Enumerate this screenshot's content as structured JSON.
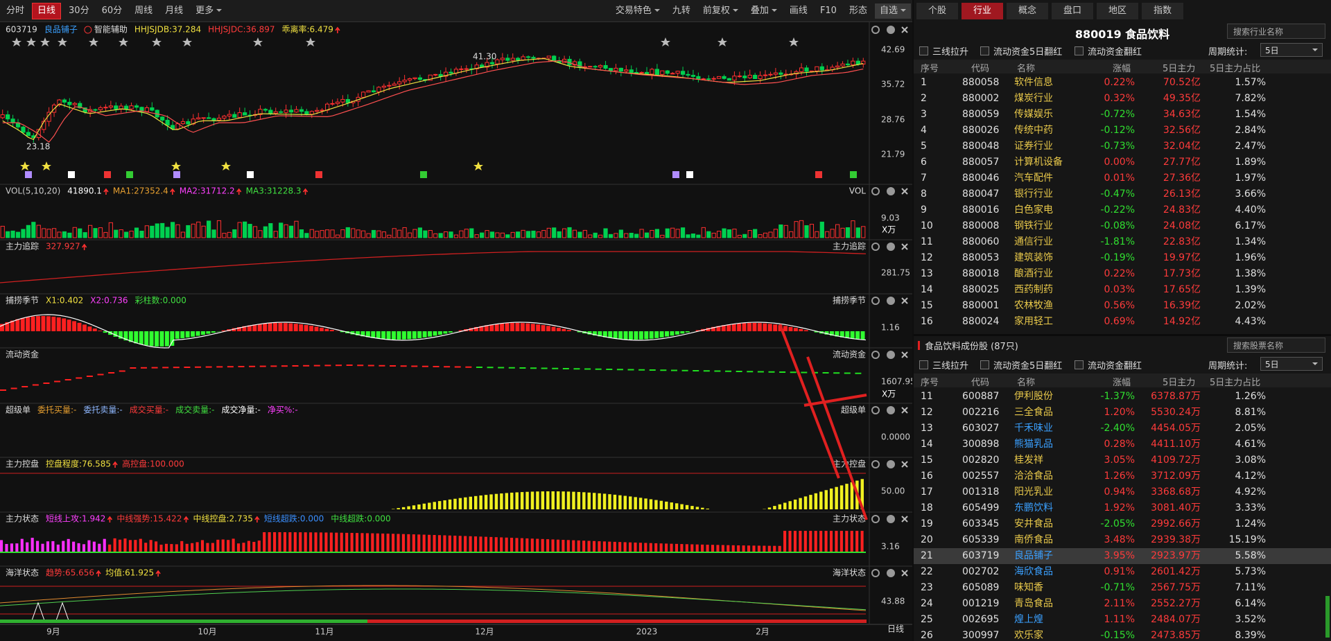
{
  "toolbar": {
    "tabs": [
      "分时",
      "日线",
      "30分",
      "60分",
      "周线",
      "月线",
      "更多"
    ],
    "active_tab": 1,
    "buttons": [
      "交易特色",
      "九转",
      "前复权",
      "叠加",
      "画线",
      "F10",
      "形态",
      "自选"
    ]
  },
  "chart_panels": [
    {
      "header": [
        {
          "text": "603719",
          "color": "#dddddd"
        },
        {
          "text": "良品铺子",
          "color": "#3aa0ff"
        },
        {
          "text": "智能辅助",
          "color": "#dddddd"
        },
        {
          "text": "HHJSJDB:37.284",
          "color": "#f0e040"
        },
        {
          "text": "HHJSJDC:36.897",
          "color": "#ff3b3b"
        },
        {
          "text": "乖离率:6.479",
          "color": "#f0e040",
          "arrow": true
        }
      ],
      "axis_labels": [
        "42.69",
        "35.72",
        "28.76",
        "21.79"
      ],
      "annotations": [
        "41.30",
        "23.18"
      ]
    },
    {
      "header": [
        {
          "text": "VOL(5,10,20)",
          "color": "#cccccc"
        },
        {
          "text": "41890.1",
          "color": "#ffffff",
          "arrow": true
        },
        {
          "text": "MA1:27352.4",
          "color": "#e8a030",
          "arrow": true
        },
        {
          "text": "MA2:31712.2",
          "color": "#ff40ff",
          "arrow": true
        },
        {
          "text": "MA3:31228.3",
          "color": "#40e040",
          "arrow": true
        }
      ],
      "right_label": "VOL",
      "axis_labels": [
        "9.03",
        "X万"
      ]
    },
    {
      "header": [
        {
          "text": "主力追踪",
          "color": "#dddddd"
        },
        {
          "text": "327.927",
          "color": "#ff3b3b",
          "arrow": true
        }
      ],
      "right_label": "主力追踪",
      "axis_labels": [
        "281.75"
      ]
    },
    {
      "header": [
        {
          "text": "捕捞季节",
          "color": "#dddddd"
        },
        {
          "text": "X1:0.402",
          "color": "#f0e040"
        },
        {
          "text": "X2:0.736",
          "color": "#ff40ff"
        },
        {
          "text": "彩柱数:0.000",
          "color": "#40e040"
        }
      ],
      "right_label": "捕捞季节",
      "axis_labels": [
        "1.16"
      ]
    },
    {
      "header": [
        {
          "text": "流动资金",
          "color": "#dddddd"
        }
      ],
      "right_label": "流动资金",
      "axis_labels": [
        "1607.95",
        "X万"
      ]
    },
    {
      "header": [
        {
          "text": "超级单",
          "color": "#dddddd"
        },
        {
          "text": "委托买量:-",
          "color": "#e8a030"
        },
        {
          "text": "委托卖量:-",
          "color": "#8fb8ff"
        },
        {
          "text": "成交买量:-",
          "color": "#ff3b3b"
        },
        {
          "text": "成交卖量:-",
          "color": "#40e040"
        },
        {
          "text": "成交净量:-",
          "color": "#ffffff"
        },
        {
          "text": "净买%:-",
          "color": "#ff40ff"
        }
      ],
      "right_label": "超级单",
      "axis_labels": [
        "0.0000"
      ]
    },
    {
      "header": [
        {
          "text": "主力控盘",
          "color": "#dddddd"
        },
        {
          "text": "控盘程度:76.585",
          "color": "#f0e040",
          "arrow": true
        },
        {
          "text": "高控盘:100.000",
          "color": "#ff3b3b"
        }
      ],
      "right_label": "主力控盘",
      "axis_labels": [
        "50.00"
      ]
    },
    {
      "header": [
        {
          "text": "主力状态",
          "color": "#dddddd"
        },
        {
          "text": "短线上攻:1.942",
          "color": "#ff40ff",
          "arrow": true
        },
        {
          "text": "中线强势:15.422",
          "color": "#ff3b3b",
          "arrow": true
        },
        {
          "text": "中线控盘:2.735",
          "color": "#f0e040",
          "arrow": true
        },
        {
          "text": "短线超跌:0.000",
          "color": "#3a8fff"
        },
        {
          "text": "中线超跌:0.000",
          "color": "#40e040"
        }
      ],
      "right_label": "主力状态",
      "axis_labels": [
        "3.16"
      ]
    },
    {
      "header": [
        {
          "text": "海洋状态",
          "color": "#dddddd"
        },
        {
          "text": "趋势:65.656",
          "color": "#ff3b3b",
          "arrow": true
        },
        {
          "text": "均值:61.925",
          "color": "#f0e040",
          "arrow": true
        }
      ],
      "right_label": "海洋状态",
      "axis_labels": [
        "43.88"
      ]
    }
  ],
  "x_axis": {
    "labels": [
      "9月",
      "10月",
      "11月",
      "12月",
      "2023",
      "2月"
    ],
    "period": "日线"
  },
  "right_panel": {
    "tabs": [
      "个股",
      "行业",
      "概念",
      "盘口",
      "地区",
      "指数"
    ],
    "active_tab": 1,
    "industry": {
      "title": "880019 食品饮料",
      "search": "搜索行业名称",
      "filters": [
        "三线拉升",
        "流动资金5日翻红",
        "流动资金翻红"
      ],
      "period_label": "周期统计:",
      "period": "5日",
      "columns": [
        "序号",
        "代码",
        "名称",
        "涨幅",
        "5日主力",
        "5日主力占比"
      ],
      "rows": [
        [
          "1",
          "880058",
          "软件信息",
          "0.22%",
          "70.52亿",
          "1.57%"
        ],
        [
          "2",
          "880002",
          "煤炭行业",
          "0.32%",
          "49.35亿",
          "7.82%"
        ],
        [
          "3",
          "880059",
          "传媒娱乐",
          "-0.72%",
          "34.63亿",
          "1.54%"
        ],
        [
          "4",
          "880026",
          "传统中药",
          "-0.12%",
          "32.56亿",
          "2.84%"
        ],
        [
          "5",
          "880048",
          "证券行业",
          "-0.73%",
          "32.04亿",
          "2.47%"
        ],
        [
          "6",
          "880057",
          "计算机设备",
          "0.00%",
          "27.77亿",
          "1.89%"
        ],
        [
          "7",
          "880046",
          "汽车配件",
          "0.01%",
          "27.36亿",
          "1.97%"
        ],
        [
          "8",
          "880047",
          "银行行业",
          "-0.47%",
          "26.13亿",
          "3.66%"
        ],
        [
          "9",
          "880016",
          "白色家电",
          "-0.22%",
          "24.83亿",
          "4.40%"
        ],
        [
          "10",
          "880008",
          "钢铁行业",
          "-0.08%",
          "24.08亿",
          "6.17%"
        ],
        [
          "11",
          "880060",
          "通信行业",
          "-1.81%",
          "22.83亿",
          "1.34%"
        ],
        [
          "12",
          "880053",
          "建筑装饰",
          "-0.19%",
          "19.97亿",
          "1.96%"
        ],
        [
          "13",
          "880018",
          "酿酒行业",
          "0.22%",
          "17.73亿",
          "1.38%"
        ],
        [
          "14",
          "880025",
          "西药制药",
          "0.03%",
          "17.65亿",
          "1.39%"
        ],
        [
          "15",
          "880001",
          "农林牧渔",
          "0.56%",
          "16.39亿",
          "2.02%"
        ],
        [
          "16",
          "880024",
          "家用轻工",
          "0.69%",
          "14.92亿",
          "4.43%"
        ]
      ]
    },
    "stocks": {
      "title": "食品饮料成份股 (87只)",
      "search": "搜索股票名称",
      "filters": [
        "三线拉升",
        "流动资金5日翻红",
        "流动资金翻红"
      ],
      "period_label": "周期统计:",
      "period": "5日",
      "columns": [
        "序号",
        "代码",
        "名称",
        "涨幅",
        "5日主力",
        "5日主力占比"
      ],
      "rows": [
        {
          "cells": [
            "11",
            "600887",
            "伊利股份",
            "-1.37%",
            "6378.87万",
            "1.26%"
          ],
          "name_color": "#e8c84a"
        },
        {
          "cells": [
            "12",
            "002216",
            "三全食品",
            "1.20%",
            "5530.24万",
            "8.81%"
          ],
          "name_color": "#e8c84a"
        },
        {
          "cells": [
            "13",
            "603027",
            "千禾味业",
            "-2.40%",
            "4454.05万",
            "2.05%"
          ],
          "name_color": "#3aa0ff"
        },
        {
          "cells": [
            "14",
            "300898",
            "熊猫乳品",
            "0.28%",
            "4411.10万",
            "4.61%"
          ],
          "name_color": "#3aa0ff"
        },
        {
          "cells": [
            "15",
            "002820",
            "桂发祥",
            "3.05%",
            "4109.72万",
            "3.08%"
          ],
          "name_color": "#e8c84a"
        },
        {
          "cells": [
            "16",
            "002557",
            "洽洽食品",
            "1.26%",
            "3712.09万",
            "4.12%"
          ],
          "name_color": "#e8c84a"
        },
        {
          "cells": [
            "17",
            "001318",
            "阳光乳业",
            "0.94%",
            "3368.68万",
            "4.92%"
          ],
          "name_color": "#e8c84a"
        },
        {
          "cells": [
            "18",
            "605499",
            "东鹏饮料",
            "1.92%",
            "3081.40万",
            "3.33%"
          ],
          "name_color": "#3aa0ff"
        },
        {
          "cells": [
            "19",
            "603345",
            "安井食品",
            "-2.05%",
            "2992.66万",
            "1.24%"
          ],
          "name_color": "#e8c84a"
        },
        {
          "cells": [
            "20",
            "605339",
            "南侨食品",
            "3.48%",
            "2939.38万",
            "15.19%"
          ],
          "name_color": "#e8c84a"
        },
        {
          "cells": [
            "21",
            "603719",
            "良品铺子",
            "3.95%",
            "2923.97万",
            "5.58%"
          ],
          "name_color": "#3aa0ff",
          "selected": true
        },
        {
          "cells": [
            "22",
            "002702",
            "海欣食品",
            "0.91%",
            "2601.42万",
            "5.73%"
          ],
          "name_color": "#3aa0ff"
        },
        {
          "cells": [
            "23",
            "605089",
            "味知香",
            "-0.71%",
            "2567.75万",
            "7.11%"
          ],
          "name_color": "#e8c84a"
        },
        {
          "cells": [
            "24",
            "001219",
            "青岛食品",
            "2.11%",
            "2552.27万",
            "6.14%"
          ],
          "name_color": "#e8c84a"
        },
        {
          "cells": [
            "25",
            "002695",
            "煌上煌",
            "1.11%",
            "2484.07万",
            "3.52%"
          ],
          "name_color": "#3aa0ff"
        },
        {
          "cells": [
            "26",
            "300997",
            "欢乐家",
            "-0.15%",
            "2473.85万",
            "8.39%"
          ],
          "name_color": "#e8c84a"
        }
      ]
    }
  }
}
